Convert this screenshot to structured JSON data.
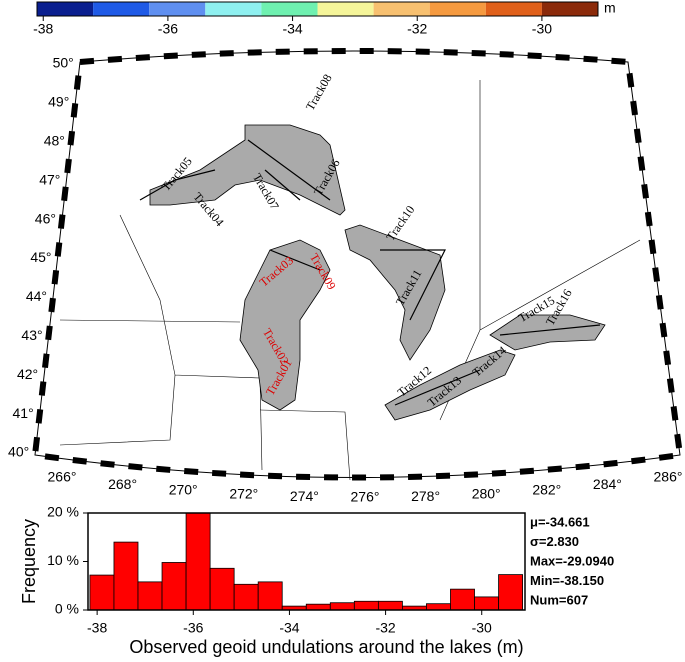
{
  "chart_data": [
    {
      "type": "colorbar",
      "unit": "m",
      "levels": [
        -38.1,
        -37.2,
        -36.3,
        -35.4,
        -34.5,
        -33.6,
        -32.7,
        -31.8,
        -30.9,
        -30.0,
        -29.1
      ],
      "colors": [
        "#0a1f8f",
        "#1f5ae6",
        "#5f8ff0",
        "#8ff0f0",
        "#6ff0b0",
        "#f5f59a",
        "#f7c070",
        "#f59a40",
        "#e0601a",
        "#8b2a0a"
      ],
      "xlim": [
        -38.1,
        -29.1
      ],
      "xticks": [
        -38,
        -36,
        -34,
        -32,
        -30
      ]
    },
    {
      "type": "histogram",
      "ylabel": "Frequency",
      "xlabel": "Observed geoid undulations around the lakes (m)",
      "bins": [
        -38.15,
        -37.65,
        -37.15,
        -36.65,
        -36.15,
        -35.65,
        -35.15,
        -34.65,
        -34.15,
        -33.65,
        -33.15,
        -32.65,
        -32.15,
        -31.65,
        -31.15,
        -30.65,
        -30.15,
        -29.65,
        -29.15
      ],
      "values": [
        7.2,
        14,
        5.8,
        9.8,
        20,
        8.6,
        5.3,
        5.8,
        0.8,
        1.2,
        1.5,
        1.8,
        1.8,
        0.8,
        1.3,
        4.3,
        2.7,
        7.3
      ],
      "color": "#ff0000",
      "xlim": [
        -38.19,
        -29.1
      ],
      "xticks": [
        -38,
        -36,
        -34,
        -32,
        -30
      ],
      "ylim": [
        0,
        20
      ],
      "yticks": [
        {
          "value": 0,
          "label": "0 %"
        },
        {
          "value": 10,
          "label": "10 %"
        },
        {
          "value": 20,
          "label": "20 %"
        }
      ],
      "stats": [
        "μ=-34.661",
        "σ=2.830",
        "Max=-29.0940",
        "Min=-38.150",
        "Num=607"
      ]
    }
  ],
  "map": {
    "lat_ticks": [
      {
        "value": 40,
        "label": "40°"
      },
      {
        "value": 41,
        "label": "41°"
      },
      {
        "value": 42,
        "label": "42°"
      },
      {
        "value": 43,
        "label": "43°"
      },
      {
        "value": 44,
        "label": "44°"
      },
      {
        "value": 45,
        "label": "45°"
      },
      {
        "value": 46,
        "label": "46°"
      },
      {
        "value": 47,
        "label": "47°"
      },
      {
        "value": 48,
        "label": "48°"
      },
      {
        "value": 49,
        "label": "49°"
      },
      {
        "value": 50,
        "label": "50°"
      }
    ],
    "lon_ticks": [
      {
        "value": 266,
        "label": "266°"
      },
      {
        "value": 268,
        "label": "268°"
      },
      {
        "value": 270,
        "label": "270°"
      },
      {
        "value": 272,
        "label": "272°"
      },
      {
        "value": 274,
        "label": "274°"
      },
      {
        "value": 276,
        "label": "276°"
      },
      {
        "value": 278,
        "label": "278°"
      },
      {
        "value": 280,
        "label": "280°"
      },
      {
        "value": 282,
        "label": "282°"
      },
      {
        "value": 284,
        "label": "284°"
      },
      {
        "value": 286,
        "label": "286°"
      }
    ],
    "tracks": [
      "Track08",
      "Track07",
      "Track06",
      "Track05",
      "Track04",
      "Track10",
      "Track11",
      "Track09",
      "Track03",
      "Track02",
      "Track01",
      "Track12",
      "Track13",
      "Track14",
      "Track15",
      "Track16"
    ]
  }
}
